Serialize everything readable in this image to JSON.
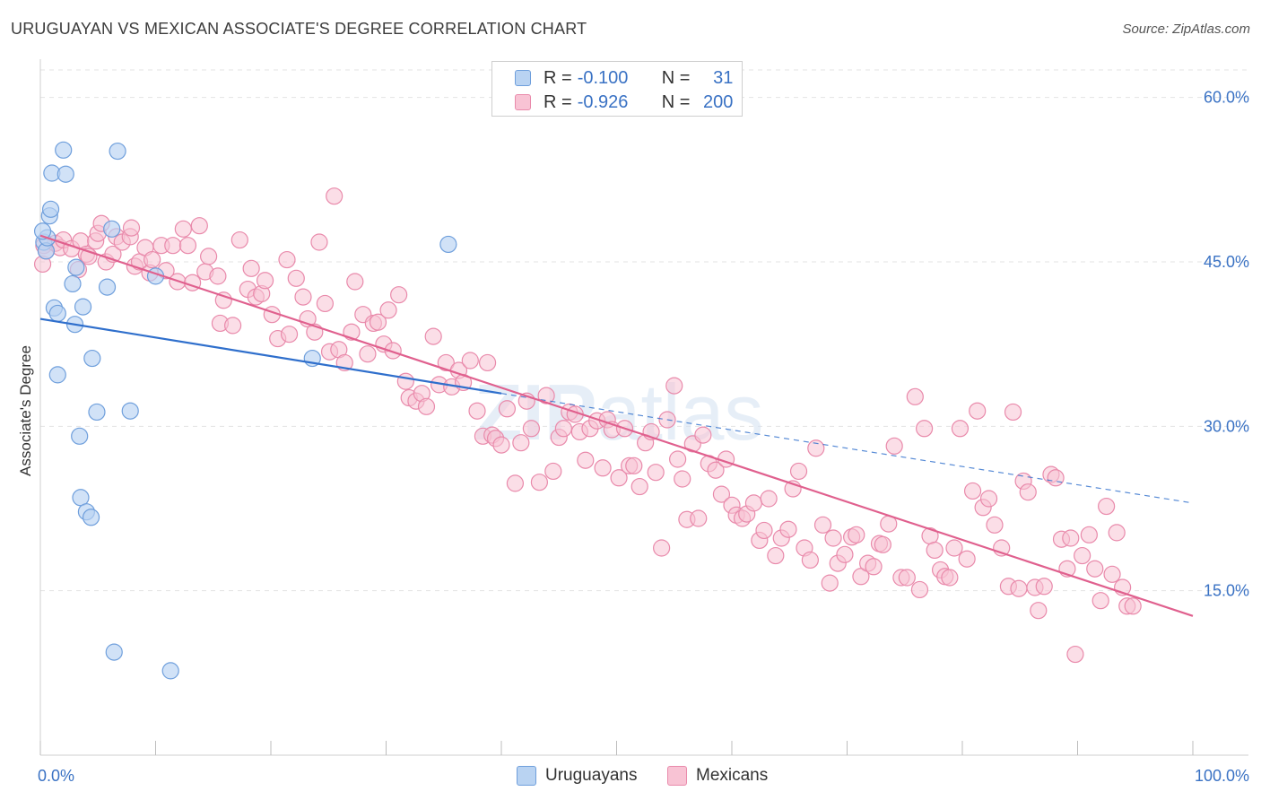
{
  "title": "URUGUAYAN VS MEXICAN ASSOCIATE'S DEGREE CORRELATION CHART",
  "source": "Source: ZipAtlas.com",
  "watermark": "ZIPatlas",
  "legend": {
    "uruguayans": {
      "r_label": "R =",
      "r_value": "-0.100",
      "n_label": "N =",
      "n_value": "31"
    },
    "mexicans": {
      "r_label": "R =",
      "r_value": "-0.926",
      "n_label": "N =",
      "n_value": "200"
    }
  },
  "bottom_legend": {
    "uruguayans": "Uruguayans",
    "mexicans": "Mexicans"
  },
  "colors": {
    "uruguayan_fill": "#b9d3f2",
    "uruguayan_stroke": "#6f9fdc",
    "uruguayan_line": "#2f6fcc",
    "mexican_fill": "#f8c3d4",
    "mexican_stroke": "#e98aab",
    "mexican_line": "#e0608e",
    "axis_label": "#3a72c4",
    "grid": "#e3e3e3"
  },
  "chart_data": {
    "type": "scatter",
    "title": "URUGUAYAN VS MEXICAN ASSOCIATE'S DEGREE CORRELATION CHART",
    "xlabel": "",
    "ylabel": "Associate's Degree",
    "xlim": [
      0,
      100
    ],
    "ylim": [
      0,
      63
    ],
    "x_tick_labels": [
      "0.0%",
      "100.0%"
    ],
    "y_ticks": [
      15,
      30,
      45,
      60
    ],
    "y_tick_labels": [
      "15.0%",
      "30.0%",
      "45.0%",
      "60.0%"
    ],
    "series": [
      {
        "name": "Uruguayans",
        "points": [
          [
            0.3,
            46.8
          ],
          [
            0.5,
            46.0
          ],
          [
            0.6,
            47.2
          ],
          [
            0.8,
            49.2
          ],
          [
            0.9,
            49.8
          ],
          [
            1.0,
            53.1
          ],
          [
            1.2,
            40.8
          ],
          [
            1.5,
            40.3
          ],
          [
            1.5,
            34.7
          ],
          [
            2.0,
            55.2
          ],
          [
            2.2,
            53.0
          ],
          [
            2.8,
            43.0
          ],
          [
            3.0,
            39.3
          ],
          [
            3.1,
            44.5
          ],
          [
            3.4,
            29.1
          ],
          [
            3.5,
            23.5
          ],
          [
            3.7,
            40.9
          ],
          [
            4.0,
            22.2
          ],
          [
            4.4,
            21.7
          ],
          [
            4.5,
            36.2
          ],
          [
            4.9,
            31.3
          ],
          [
            5.8,
            42.7
          ],
          [
            6.2,
            48.0
          ],
          [
            6.4,
            9.4
          ],
          [
            6.7,
            55.1
          ],
          [
            7.8,
            31.4
          ],
          [
            10.0,
            43.7
          ],
          [
            11.3,
            7.7
          ],
          [
            23.6,
            36.2
          ],
          [
            35.4,
            46.6
          ],
          [
            0.2,
            47.8
          ]
        ],
        "trend": {
          "x": [
            0,
            40
          ],
          "y": [
            39.8,
            33.0
          ],
          "dashed_to": [
            100,
            23.0
          ]
        }
      },
      {
        "name": "Mexicans",
        "points": [
          [
            0.2,
            44.8
          ],
          [
            0.3,
            46.5
          ],
          [
            0.5,
            46.0
          ],
          [
            1.3,
            46.7
          ],
          [
            1.7,
            46.3
          ],
          [
            2.0,
            47.0
          ],
          [
            2.7,
            46.2
          ],
          [
            3.3,
            44.3
          ],
          [
            3.5,
            46.9
          ],
          [
            4.0,
            45.7
          ],
          [
            4.2,
            45.5
          ],
          [
            4.8,
            46.9
          ],
          [
            5.0,
            47.6
          ],
          [
            5.3,
            48.5
          ],
          [
            5.7,
            45.0
          ],
          [
            6.3,
            45.7
          ],
          [
            6.6,
            47.3
          ],
          [
            7.1,
            46.8
          ],
          [
            7.8,
            47.3
          ],
          [
            7.9,
            48.1
          ],
          [
            8.2,
            44.6
          ],
          [
            8.6,
            45.0
          ],
          [
            9.1,
            46.3
          ],
          [
            9.5,
            44.0
          ],
          [
            9.7,
            45.2
          ],
          [
            10.5,
            46.5
          ],
          [
            10.9,
            44.2
          ],
          [
            11.5,
            46.5
          ],
          [
            11.9,
            43.2
          ],
          [
            12.4,
            48.0
          ],
          [
            12.8,
            46.5
          ],
          [
            13.2,
            43.1
          ],
          [
            13.8,
            48.3
          ],
          [
            14.3,
            44.1
          ],
          [
            14.6,
            45.5
          ],
          [
            15.4,
            43.7
          ],
          [
            15.6,
            39.4
          ],
          [
            15.9,
            41.5
          ],
          [
            16.7,
            39.2
          ],
          [
            17.3,
            47.0
          ],
          [
            18.0,
            42.5
          ],
          [
            18.3,
            44.4
          ],
          [
            18.7,
            41.8
          ],
          [
            19.2,
            42.1
          ],
          [
            19.5,
            43.3
          ],
          [
            20.1,
            40.2
          ],
          [
            20.6,
            38.0
          ],
          [
            21.4,
            45.2
          ],
          [
            21.6,
            38.4
          ],
          [
            22.2,
            43.5
          ],
          [
            22.8,
            41.8
          ],
          [
            23.2,
            39.8
          ],
          [
            23.8,
            38.6
          ],
          [
            24.2,
            46.8
          ],
          [
            24.7,
            41.2
          ],
          [
            25.1,
            36.8
          ],
          [
            25.5,
            51.0
          ],
          [
            25.9,
            37.0
          ],
          [
            26.4,
            35.8
          ],
          [
            27.0,
            38.6
          ],
          [
            27.3,
            43.2
          ],
          [
            28.0,
            40.2
          ],
          [
            28.4,
            36.6
          ],
          [
            28.9,
            39.4
          ],
          [
            29.3,
            39.5
          ],
          [
            29.8,
            37.5
          ],
          [
            30.2,
            40.6
          ],
          [
            30.6,
            36.9
          ],
          [
            31.1,
            42.0
          ],
          [
            31.7,
            34.1
          ],
          [
            32.0,
            32.6
          ],
          [
            32.6,
            32.3
          ],
          [
            33.1,
            33.0
          ],
          [
            33.5,
            31.8
          ],
          [
            34.1,
            38.2
          ],
          [
            34.6,
            33.8
          ],
          [
            35.2,
            35.8
          ],
          [
            35.7,
            33.6
          ],
          [
            36.3,
            35.1
          ],
          [
            36.7,
            34.0
          ],
          [
            37.3,
            36.0
          ],
          [
            37.9,
            31.4
          ],
          [
            38.4,
            29.1
          ],
          [
            38.8,
            35.8
          ],
          [
            39.2,
            29.2
          ],
          [
            39.5,
            28.9
          ],
          [
            40.0,
            28.3
          ],
          [
            40.5,
            31.6
          ],
          [
            41.2,
            24.8
          ],
          [
            41.7,
            28.5
          ],
          [
            42.2,
            32.3
          ],
          [
            42.6,
            29.8
          ],
          [
            43.3,
            24.9
          ],
          [
            43.9,
            32.8
          ],
          [
            44.5,
            25.9
          ],
          [
            45.0,
            29.0
          ],
          [
            45.4,
            29.8
          ],
          [
            45.9,
            31.3
          ],
          [
            46.4,
            31.1
          ],
          [
            46.8,
            29.5
          ],
          [
            47.3,
            26.9
          ],
          [
            47.7,
            29.8
          ],
          [
            48.3,
            30.5
          ],
          [
            48.8,
            26.2
          ],
          [
            49.2,
            30.6
          ],
          [
            49.6,
            29.7
          ],
          [
            50.2,
            25.3
          ],
          [
            50.7,
            29.8
          ],
          [
            51.1,
            26.4
          ],
          [
            51.5,
            26.4
          ],
          [
            52.0,
            24.5
          ],
          [
            52.5,
            28.5
          ],
          [
            53.0,
            29.5
          ],
          [
            53.4,
            25.8
          ],
          [
            53.9,
            18.9
          ],
          [
            54.4,
            30.6
          ],
          [
            55.0,
            33.7
          ],
          [
            55.3,
            27.0
          ],
          [
            55.7,
            25.2
          ],
          [
            56.1,
            21.5
          ],
          [
            56.6,
            28.4
          ],
          [
            57.1,
            21.6
          ],
          [
            57.5,
            29.2
          ],
          [
            58.0,
            26.6
          ],
          [
            58.6,
            26.0
          ],
          [
            59.1,
            23.8
          ],
          [
            59.5,
            27.0
          ],
          [
            60.0,
            22.8
          ],
          [
            60.4,
            21.9
          ],
          [
            60.9,
            21.6
          ],
          [
            61.3,
            22.0
          ],
          [
            61.9,
            23.0
          ],
          [
            62.4,
            19.6
          ],
          [
            62.8,
            20.5
          ],
          [
            63.2,
            23.4
          ],
          [
            63.8,
            18.2
          ],
          [
            64.3,
            19.8
          ],
          [
            64.9,
            20.6
          ],
          [
            65.3,
            24.3
          ],
          [
            65.8,
            25.9
          ],
          [
            66.3,
            18.9
          ],
          [
            66.8,
            17.8
          ],
          [
            67.3,
            28.0
          ],
          [
            67.9,
            21.0
          ],
          [
            68.5,
            15.7
          ],
          [
            68.8,
            19.8
          ],
          [
            69.2,
            17.5
          ],
          [
            69.8,
            18.3
          ],
          [
            70.4,
            19.9
          ],
          [
            70.8,
            20.1
          ],
          [
            71.2,
            16.3
          ],
          [
            71.8,
            17.5
          ],
          [
            72.3,
            17.2
          ],
          [
            72.8,
            19.3
          ],
          [
            73.1,
            19.2
          ],
          [
            73.6,
            21.1
          ],
          [
            74.1,
            28.2
          ],
          [
            74.7,
            16.2
          ],
          [
            75.2,
            16.2
          ],
          [
            75.9,
            32.7
          ],
          [
            76.3,
            15.1
          ],
          [
            76.7,
            29.8
          ],
          [
            77.2,
            20.0
          ],
          [
            77.6,
            18.7
          ],
          [
            78.1,
            16.9
          ],
          [
            78.5,
            16.3
          ],
          [
            78.9,
            16.2
          ],
          [
            79.3,
            18.9
          ],
          [
            79.8,
            29.8
          ],
          [
            80.4,
            17.9
          ],
          [
            80.9,
            24.1
          ],
          [
            81.3,
            31.4
          ],
          [
            81.8,
            22.6
          ],
          [
            82.3,
            23.4
          ],
          [
            82.8,
            21.0
          ],
          [
            83.4,
            18.9
          ],
          [
            84.0,
            15.4
          ],
          [
            84.4,
            31.3
          ],
          [
            84.9,
            15.2
          ],
          [
            85.3,
            25.0
          ],
          [
            85.7,
            24.0
          ],
          [
            86.3,
            15.3
          ],
          [
            86.6,
            13.2
          ],
          [
            87.1,
            15.4
          ],
          [
            87.7,
            25.6
          ],
          [
            88.1,
            25.3
          ],
          [
            88.6,
            19.7
          ],
          [
            89.1,
            17.0
          ],
          [
            89.4,
            19.8
          ],
          [
            89.8,
            9.2
          ],
          [
            90.4,
            18.2
          ],
          [
            91.0,
            20.1
          ],
          [
            91.5,
            17.0
          ],
          [
            92.0,
            14.1
          ],
          [
            92.5,
            22.7
          ],
          [
            93.0,
            16.5
          ],
          [
            93.4,
            20.3
          ],
          [
            93.9,
            15.3
          ],
          [
            94.3,
            13.6
          ],
          [
            94.8,
            13.6
          ]
        ],
        "trend": {
          "x": [
            0,
            100
          ],
          "y": [
            47.4,
            12.7
          ]
        }
      }
    ]
  }
}
